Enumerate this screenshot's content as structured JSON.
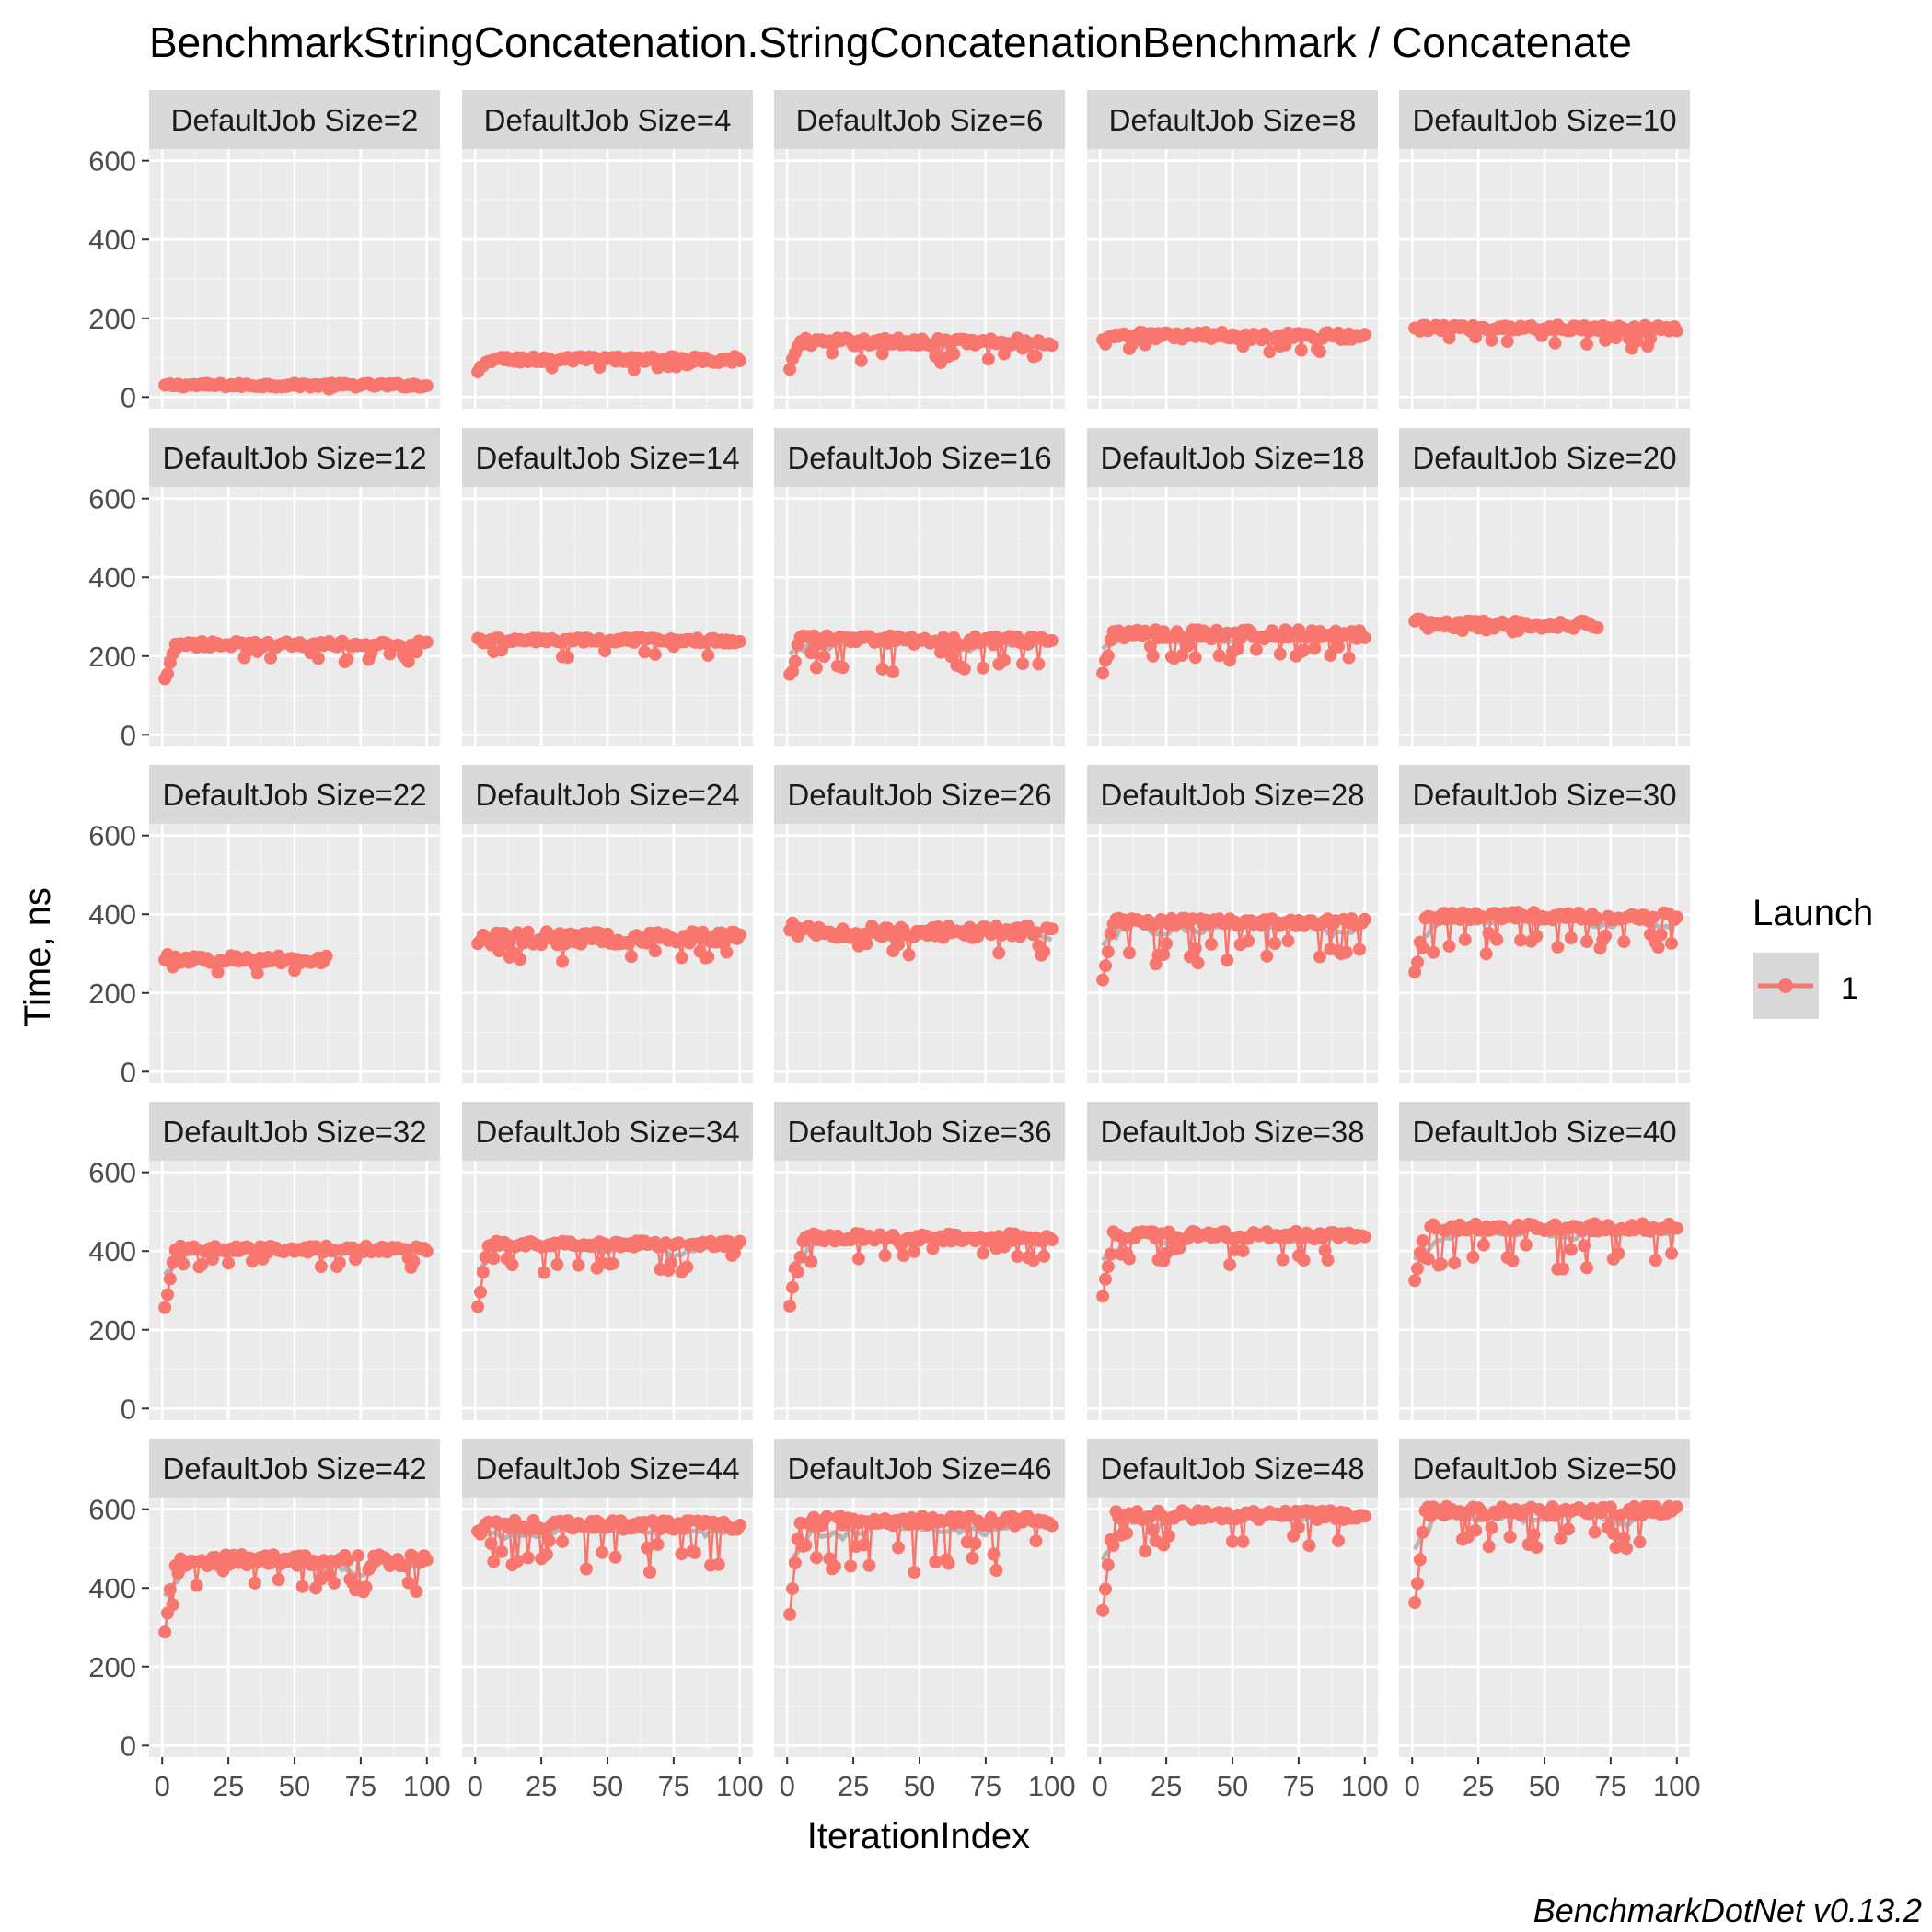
{
  "chart_data": {
    "type": "line",
    "title": "BenchmarkStringConcatenation.StringConcatenationBenchmark / Concatenate",
    "xlabel": "IterationIndex",
    "ylabel": "Time, ns",
    "caption": "BenchmarkDotNet v0.13.2",
    "xlim": [
      0,
      100
    ],
    "ylim": [
      0,
      600
    ],
    "x_ticks": [
      "0",
      "25",
      "50",
      "75",
      "100"
    ],
    "y_ticks": [
      "0",
      "200",
      "400",
      "600"
    ],
    "grid": true,
    "legend": {
      "title": "Launch",
      "position": "right",
      "entries": [
        {
          "label": "1",
          "color": "#F8766D"
        }
      ]
    },
    "series_color": "#F8766D",
    "smooth_color": "#A8A8A8",
    "facets": [
      {
        "label": "DefaultJob Size=2",
        "n": 100,
        "start": 30,
        "base": 30,
        "noise": 5,
        "dips": 2,
        "dip_depth": 8
      },
      {
        "label": "DefaultJob Size=4",
        "n": 100,
        "start": 60,
        "base": 95,
        "noise": 8,
        "dips": 8,
        "dip_depth": 25
      },
      {
        "label": "DefaultJob Size=6",
        "n": 100,
        "start": 80,
        "base": 140,
        "noise": 10,
        "dips": 12,
        "dip_depth": 50
      },
      {
        "label": "DefaultJob Size=8",
        "n": 100,
        "start": 140,
        "base": 155,
        "noise": 10,
        "dips": 12,
        "dip_depth": 40
      },
      {
        "label": "DefaultJob Size=10",
        "n": 100,
        "start": 170,
        "base": 175,
        "noise": 8,
        "dips": 14,
        "dip_depth": 50
      },
      {
        "label": "DefaultJob Size=12",
        "n": 100,
        "start": 140,
        "base": 230,
        "noise": 8,
        "dips": 15,
        "dip_depth": 45
      },
      {
        "label": "DefaultJob Size=14",
        "n": 100,
        "start": 240,
        "base": 240,
        "noise": 7,
        "dips": 10,
        "dip_depth": 40
      },
      {
        "label": "DefaultJob Size=16",
        "n": 100,
        "start": 150,
        "base": 240,
        "noise": 12,
        "dips": 22,
        "dip_depth": 80
      },
      {
        "label": "DefaultJob Size=18",
        "n": 100,
        "start": 160,
        "base": 255,
        "noise": 12,
        "dips": 20,
        "dip_depth": 70
      },
      {
        "label": "DefaultJob Size=20",
        "n": 70,
        "start": 290,
        "base": 280,
        "noise": 10,
        "dips": 5,
        "dip_depth": 30
      },
      {
        "label": "DefaultJob Size=22",
        "n": 62,
        "start": 290,
        "base": 285,
        "noise": 10,
        "dips": 6,
        "dip_depth": 40
      },
      {
        "label": "DefaultJob Size=24",
        "n": 100,
        "start": 320,
        "base": 340,
        "noise": 18,
        "dips": 14,
        "dip_depth": 70
      },
      {
        "label": "DefaultJob Size=26",
        "n": 100,
        "start": 370,
        "base": 355,
        "noise": 15,
        "dips": 10,
        "dip_depth": 70
      },
      {
        "label": "DefaultJob Size=28",
        "n": 100,
        "start": 240,
        "base": 380,
        "noise": 10,
        "dips": 24,
        "dip_depth": 110
      },
      {
        "label": "DefaultJob Size=30",
        "n": 100,
        "start": 250,
        "base": 395,
        "noise": 10,
        "dips": 22,
        "dip_depth": 90
      },
      {
        "label": "DefaultJob Size=32",
        "n": 100,
        "start": 260,
        "base": 405,
        "noise": 8,
        "dips": 16,
        "dip_depth": 50
      },
      {
        "label": "DefaultJob Size=34",
        "n": 100,
        "start": 265,
        "base": 418,
        "noise": 8,
        "dips": 20,
        "dip_depth": 70
      },
      {
        "label": "DefaultJob Size=36",
        "n": 100,
        "start": 265,
        "base": 435,
        "noise": 10,
        "dips": 18,
        "dip_depth": 60
      },
      {
        "label": "DefaultJob Size=38",
        "n": 100,
        "start": 280,
        "base": 440,
        "noise": 10,
        "dips": 18,
        "dip_depth": 70
      },
      {
        "label": "DefaultJob Size=40",
        "n": 100,
        "start": 330,
        "base": 460,
        "noise": 10,
        "dips": 20,
        "dip_depth": 110
      },
      {
        "label": "DefaultJob Size=42",
        "n": 100,
        "start": 300,
        "base": 470,
        "noise": 15,
        "dips": 22,
        "dip_depth": 70
      },
      {
        "label": "DefaultJob Size=44",
        "n": 100,
        "start": 540,
        "base": 560,
        "noise": 12,
        "dips": 22,
        "dip_depth": 110
      },
      {
        "label": "DefaultJob Size=46",
        "n": 100,
        "start": 340,
        "base": 570,
        "noise": 12,
        "dips": 24,
        "dip_depth": 130
      },
      {
        "label": "DefaultJob Size=48",
        "n": 100,
        "start": 350,
        "base": 585,
        "noise": 12,
        "dips": 18,
        "dip_depth": 90
      },
      {
        "label": "DefaultJob Size=50",
        "n": 100,
        "start": 355,
        "base": 595,
        "noise": 12,
        "dips": 20,
        "dip_depth": 100
      }
    ]
  }
}
